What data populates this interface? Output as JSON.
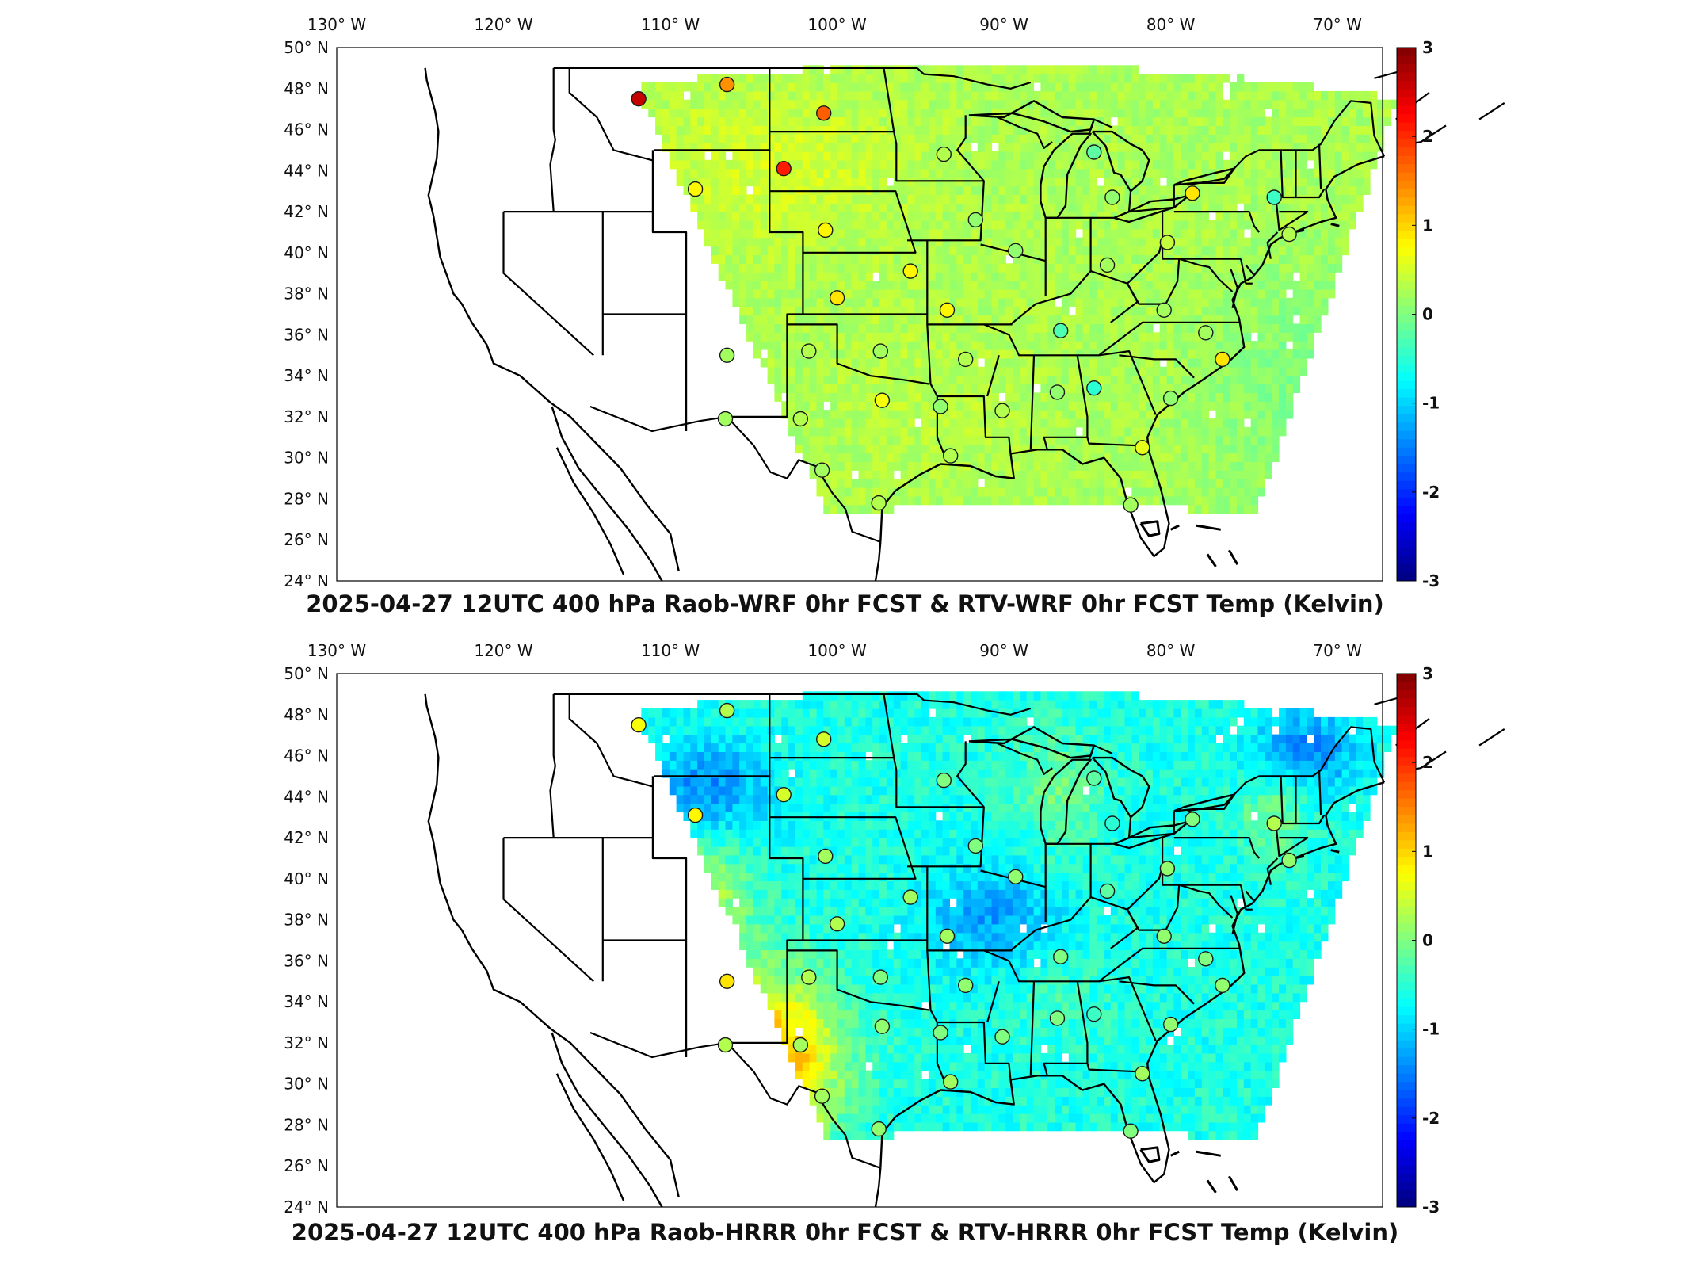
{
  "panels": [
    {
      "title": "2025-04-27 12UTC 400 hPa Raob-WRF 0hr FCST & RTV-WRF 0hr FCST Temp (Kelvin)",
      "field_bias": "wrf",
      "stations": [
        {
          "lon": -111.9,
          "lat": 47.5,
          "value": 2.6
        },
        {
          "lon": -106.6,
          "lat": 48.2,
          "value": 1.4
        },
        {
          "lon": -100.8,
          "lat": 46.8,
          "value": 1.7
        },
        {
          "lon": -103.2,
          "lat": 44.1,
          "value": 2.1
        },
        {
          "lon": -108.5,
          "lat": 43.1,
          "value": 0.8
        },
        {
          "lon": -93.6,
          "lat": 44.8,
          "value": 0.3
        },
        {
          "lon": -84.6,
          "lat": 44.9,
          "value": -0.2
        },
        {
          "lon": -83.5,
          "lat": 42.7,
          "value": 0.1
        },
        {
          "lon": -78.7,
          "lat": 42.9,
          "value": 0.9
        },
        {
          "lon": -73.8,
          "lat": 42.7,
          "value": -0.4
        },
        {
          "lon": -91.7,
          "lat": 41.6,
          "value": 0.1
        },
        {
          "lon": -100.7,
          "lat": 41.1,
          "value": 0.8
        },
        {
          "lon": -89.3,
          "lat": 40.1,
          "value": 0.1
        },
        {
          "lon": -80.2,
          "lat": 40.5,
          "value": 0.4
        },
        {
          "lon": -72.9,
          "lat": 40.9,
          "value": 0.3
        },
        {
          "lon": -95.6,
          "lat": 39.1,
          "value": 0.8
        },
        {
          "lon": -83.8,
          "lat": 39.4,
          "value": 0.2
        },
        {
          "lon": -100.0,
          "lat": 37.8,
          "value": 0.9
        },
        {
          "lon": -93.4,
          "lat": 37.2,
          "value": 0.8
        },
        {
          "lon": -80.4,
          "lat": 37.2,
          "value": 0.2
        },
        {
          "lon": -86.6,
          "lat": 36.2,
          "value": -0.3
        },
        {
          "lon": -77.9,
          "lat": 36.1,
          "value": 0.2
        },
        {
          "lon": -106.6,
          "lat": 35.0,
          "value": 0.2
        },
        {
          "lon": -101.7,
          "lat": 35.2,
          "value": 0.3
        },
        {
          "lon": -97.4,
          "lat": 35.2,
          "value": 0.2
        },
        {
          "lon": -92.3,
          "lat": 34.8,
          "value": 0.3
        },
        {
          "lon": -76.9,
          "lat": 34.8,
          "value": 0.9
        },
        {
          "lon": -97.3,
          "lat": 32.8,
          "value": 0.7
        },
        {
          "lon": -86.8,
          "lat": 33.2,
          "value": 0.1
        },
        {
          "lon": -84.6,
          "lat": 33.4,
          "value": -0.5
        },
        {
          "lon": -80.0,
          "lat": 32.9,
          "value": 0.1
        },
        {
          "lon": -93.8,
          "lat": 32.5,
          "value": 0.1
        },
        {
          "lon": -90.1,
          "lat": 32.3,
          "value": 0.3
        },
        {
          "lon": -106.7,
          "lat": 31.9,
          "value": 0.2
        },
        {
          "lon": -102.2,
          "lat": 31.9,
          "value": 0.3
        },
        {
          "lon": -81.7,
          "lat": 30.5,
          "value": 0.6
        },
        {
          "lon": -93.2,
          "lat": 30.1,
          "value": 0.3
        },
        {
          "lon": -100.9,
          "lat": 29.4,
          "value": 0.2
        },
        {
          "lon": -97.5,
          "lat": 27.8,
          "value": 0.3
        },
        {
          "lon": -82.4,
          "lat": 27.7,
          "value": 0.2
        }
      ]
    },
    {
      "title": "2025-04-27 12UTC 400 hPa Raob-HRRR 0hr FCST & RTV-HRRR 0hr FCST Temp (Kelvin)",
      "field_bias": "hrrr",
      "stations": [
        {
          "lon": -111.9,
          "lat": 47.5,
          "value": 0.7
        },
        {
          "lon": -106.6,
          "lat": 48.2,
          "value": 0.3
        },
        {
          "lon": -100.8,
          "lat": 46.8,
          "value": 0.5
        },
        {
          "lon": -103.2,
          "lat": 44.1,
          "value": 0.5
        },
        {
          "lon": -108.5,
          "lat": 43.1,
          "value": 0.8
        },
        {
          "lon": -93.6,
          "lat": 44.8,
          "value": 0.0
        },
        {
          "lon": -84.6,
          "lat": 44.9,
          "value": -0.2
        },
        {
          "lon": -83.5,
          "lat": 42.7,
          "value": -0.5
        },
        {
          "lon": -78.7,
          "lat": 42.9,
          "value": 0.0
        },
        {
          "lon": -73.8,
          "lat": 42.7,
          "value": 0.3
        },
        {
          "lon": -91.7,
          "lat": 41.6,
          "value": 0.0
        },
        {
          "lon": -100.7,
          "lat": 41.1,
          "value": 0.2
        },
        {
          "lon": -89.3,
          "lat": 40.1,
          "value": 0.1
        },
        {
          "lon": -80.2,
          "lat": 40.5,
          "value": 0.1
        },
        {
          "lon": -72.9,
          "lat": 40.9,
          "value": 0.1
        },
        {
          "lon": -95.6,
          "lat": 39.1,
          "value": 0.2
        },
        {
          "lon": -83.8,
          "lat": 39.4,
          "value": -0.2
        },
        {
          "lon": -100.0,
          "lat": 37.8,
          "value": 0.3
        },
        {
          "lon": -93.4,
          "lat": 37.2,
          "value": 0.2
        },
        {
          "lon": -80.4,
          "lat": 37.2,
          "value": 0.1
        },
        {
          "lon": -86.6,
          "lat": 36.2,
          "value": 0.0
        },
        {
          "lon": -77.9,
          "lat": 36.1,
          "value": 0.0
        },
        {
          "lon": -106.6,
          "lat": 35.0,
          "value": 0.9
        },
        {
          "lon": -101.7,
          "lat": 35.2,
          "value": 0.3
        },
        {
          "lon": -97.4,
          "lat": 35.2,
          "value": 0.0
        },
        {
          "lon": -92.3,
          "lat": 34.8,
          "value": 0.1
        },
        {
          "lon": -76.9,
          "lat": 34.8,
          "value": 0.1
        },
        {
          "lon": -97.3,
          "lat": 32.8,
          "value": 0.1
        },
        {
          "lon": -86.8,
          "lat": 33.2,
          "value": 0.0
        },
        {
          "lon": -84.6,
          "lat": 33.4,
          "value": -0.4
        },
        {
          "lon": -80.0,
          "lat": 32.9,
          "value": 0.1
        },
        {
          "lon": -93.8,
          "lat": 32.5,
          "value": 0.0
        },
        {
          "lon": -90.1,
          "lat": 32.3,
          "value": 0.0
        },
        {
          "lon": -106.7,
          "lat": 31.9,
          "value": 0.3
        },
        {
          "lon": -102.2,
          "lat": 31.9,
          "value": 0.2
        },
        {
          "lon": -81.7,
          "lat": 30.5,
          "value": 0.2
        },
        {
          "lon": -93.2,
          "lat": 30.1,
          "value": 0.2
        },
        {
          "lon": -100.9,
          "lat": 29.4,
          "value": 0.2
        },
        {
          "lon": -97.5,
          "lat": 27.8,
          "value": 0.1
        },
        {
          "lon": -82.4,
          "lat": 27.7,
          "value": 0.0
        }
      ]
    }
  ],
  "lon_ticks": [
    {
      "value": -130,
      "label": "130° W"
    },
    {
      "value": -120,
      "label": "120° W"
    },
    {
      "value": -110,
      "label": "110° W"
    },
    {
      "value": -100,
      "label": "100° W"
    },
    {
      "value": -90,
      "label": "90° W"
    },
    {
      "value": -80,
      "label": "80° W"
    },
    {
      "value": -70,
      "label": "70° W"
    }
  ],
  "lat_ticks": [
    {
      "value": 24,
      "label": "24° N"
    },
    {
      "value": 26,
      "label": "26° N"
    },
    {
      "value": 28,
      "label": "28° N"
    },
    {
      "value": 30,
      "label": "30° N"
    },
    {
      "value": 32,
      "label": "32° N"
    },
    {
      "value": 34,
      "label": "34° N"
    },
    {
      "value": 36,
      "label": "36° N"
    },
    {
      "value": 38,
      "label": "38° N"
    },
    {
      "value": 40,
      "label": "40° N"
    },
    {
      "value": 42,
      "label": "42° N"
    },
    {
      "value": 44,
      "label": "44° N"
    },
    {
      "value": 46,
      "label": "46° N"
    },
    {
      "value": 48,
      "label": "48° N"
    },
    {
      "value": 50,
      "label": "50° N"
    }
  ],
  "colorbar": {
    "min": -3,
    "max": 3,
    "ticks": [
      {
        "value": 3,
        "label": "3"
      },
      {
        "value": 2,
        "label": "2"
      },
      {
        "value": 1,
        "label": "1"
      },
      {
        "value": 0,
        "label": "0"
      },
      {
        "value": -1,
        "label": "-1"
      },
      {
        "value": -2,
        "label": "-2"
      },
      {
        "value": -3,
        "label": "-3"
      }
    ],
    "colormap": "jet"
  },
  "colors": {
    "frame": "#000000",
    "background": "#ffffff",
    "coast": "#000000"
  }
}
